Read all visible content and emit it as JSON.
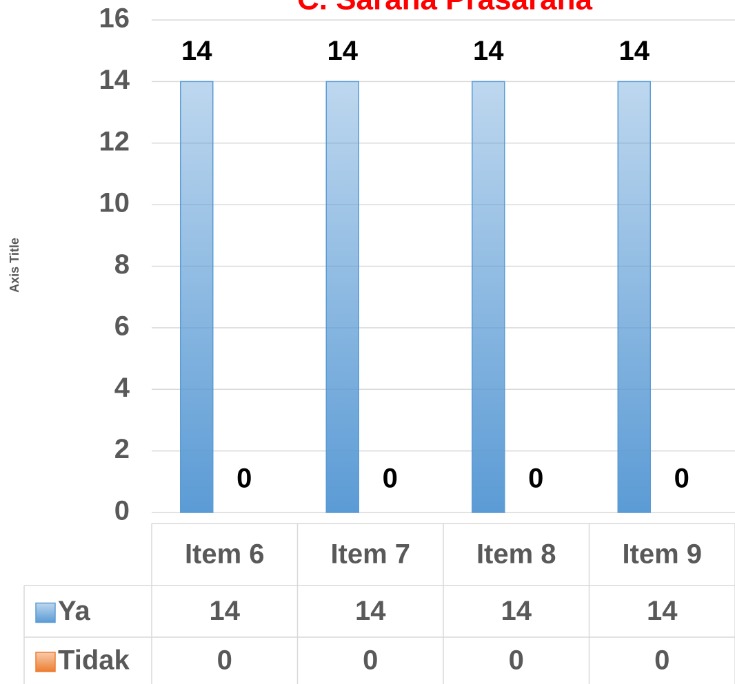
{
  "chart_data": {
    "type": "bar",
    "title": "C. Sarana Prasarana",
    "y_label": "Axis Title",
    "categories": [
      "Item 6",
      "Item 7",
      "Item 8",
      "Item 9"
    ],
    "series": [
      {
        "name": "Ya",
        "color": "#5b9bd5",
        "values": [
          14,
          14,
          14,
          14
        ]
      },
      {
        "name": "Tidak",
        "color": "#ed7d31",
        "values": [
          0,
          0,
          0,
          0
        ]
      }
    ],
    "ylim": [
      0,
      16
    ],
    "yticks": [
      0,
      2,
      4,
      6,
      8,
      10,
      12,
      14,
      16
    ],
    "grid": true,
    "data_table": true
  }
}
